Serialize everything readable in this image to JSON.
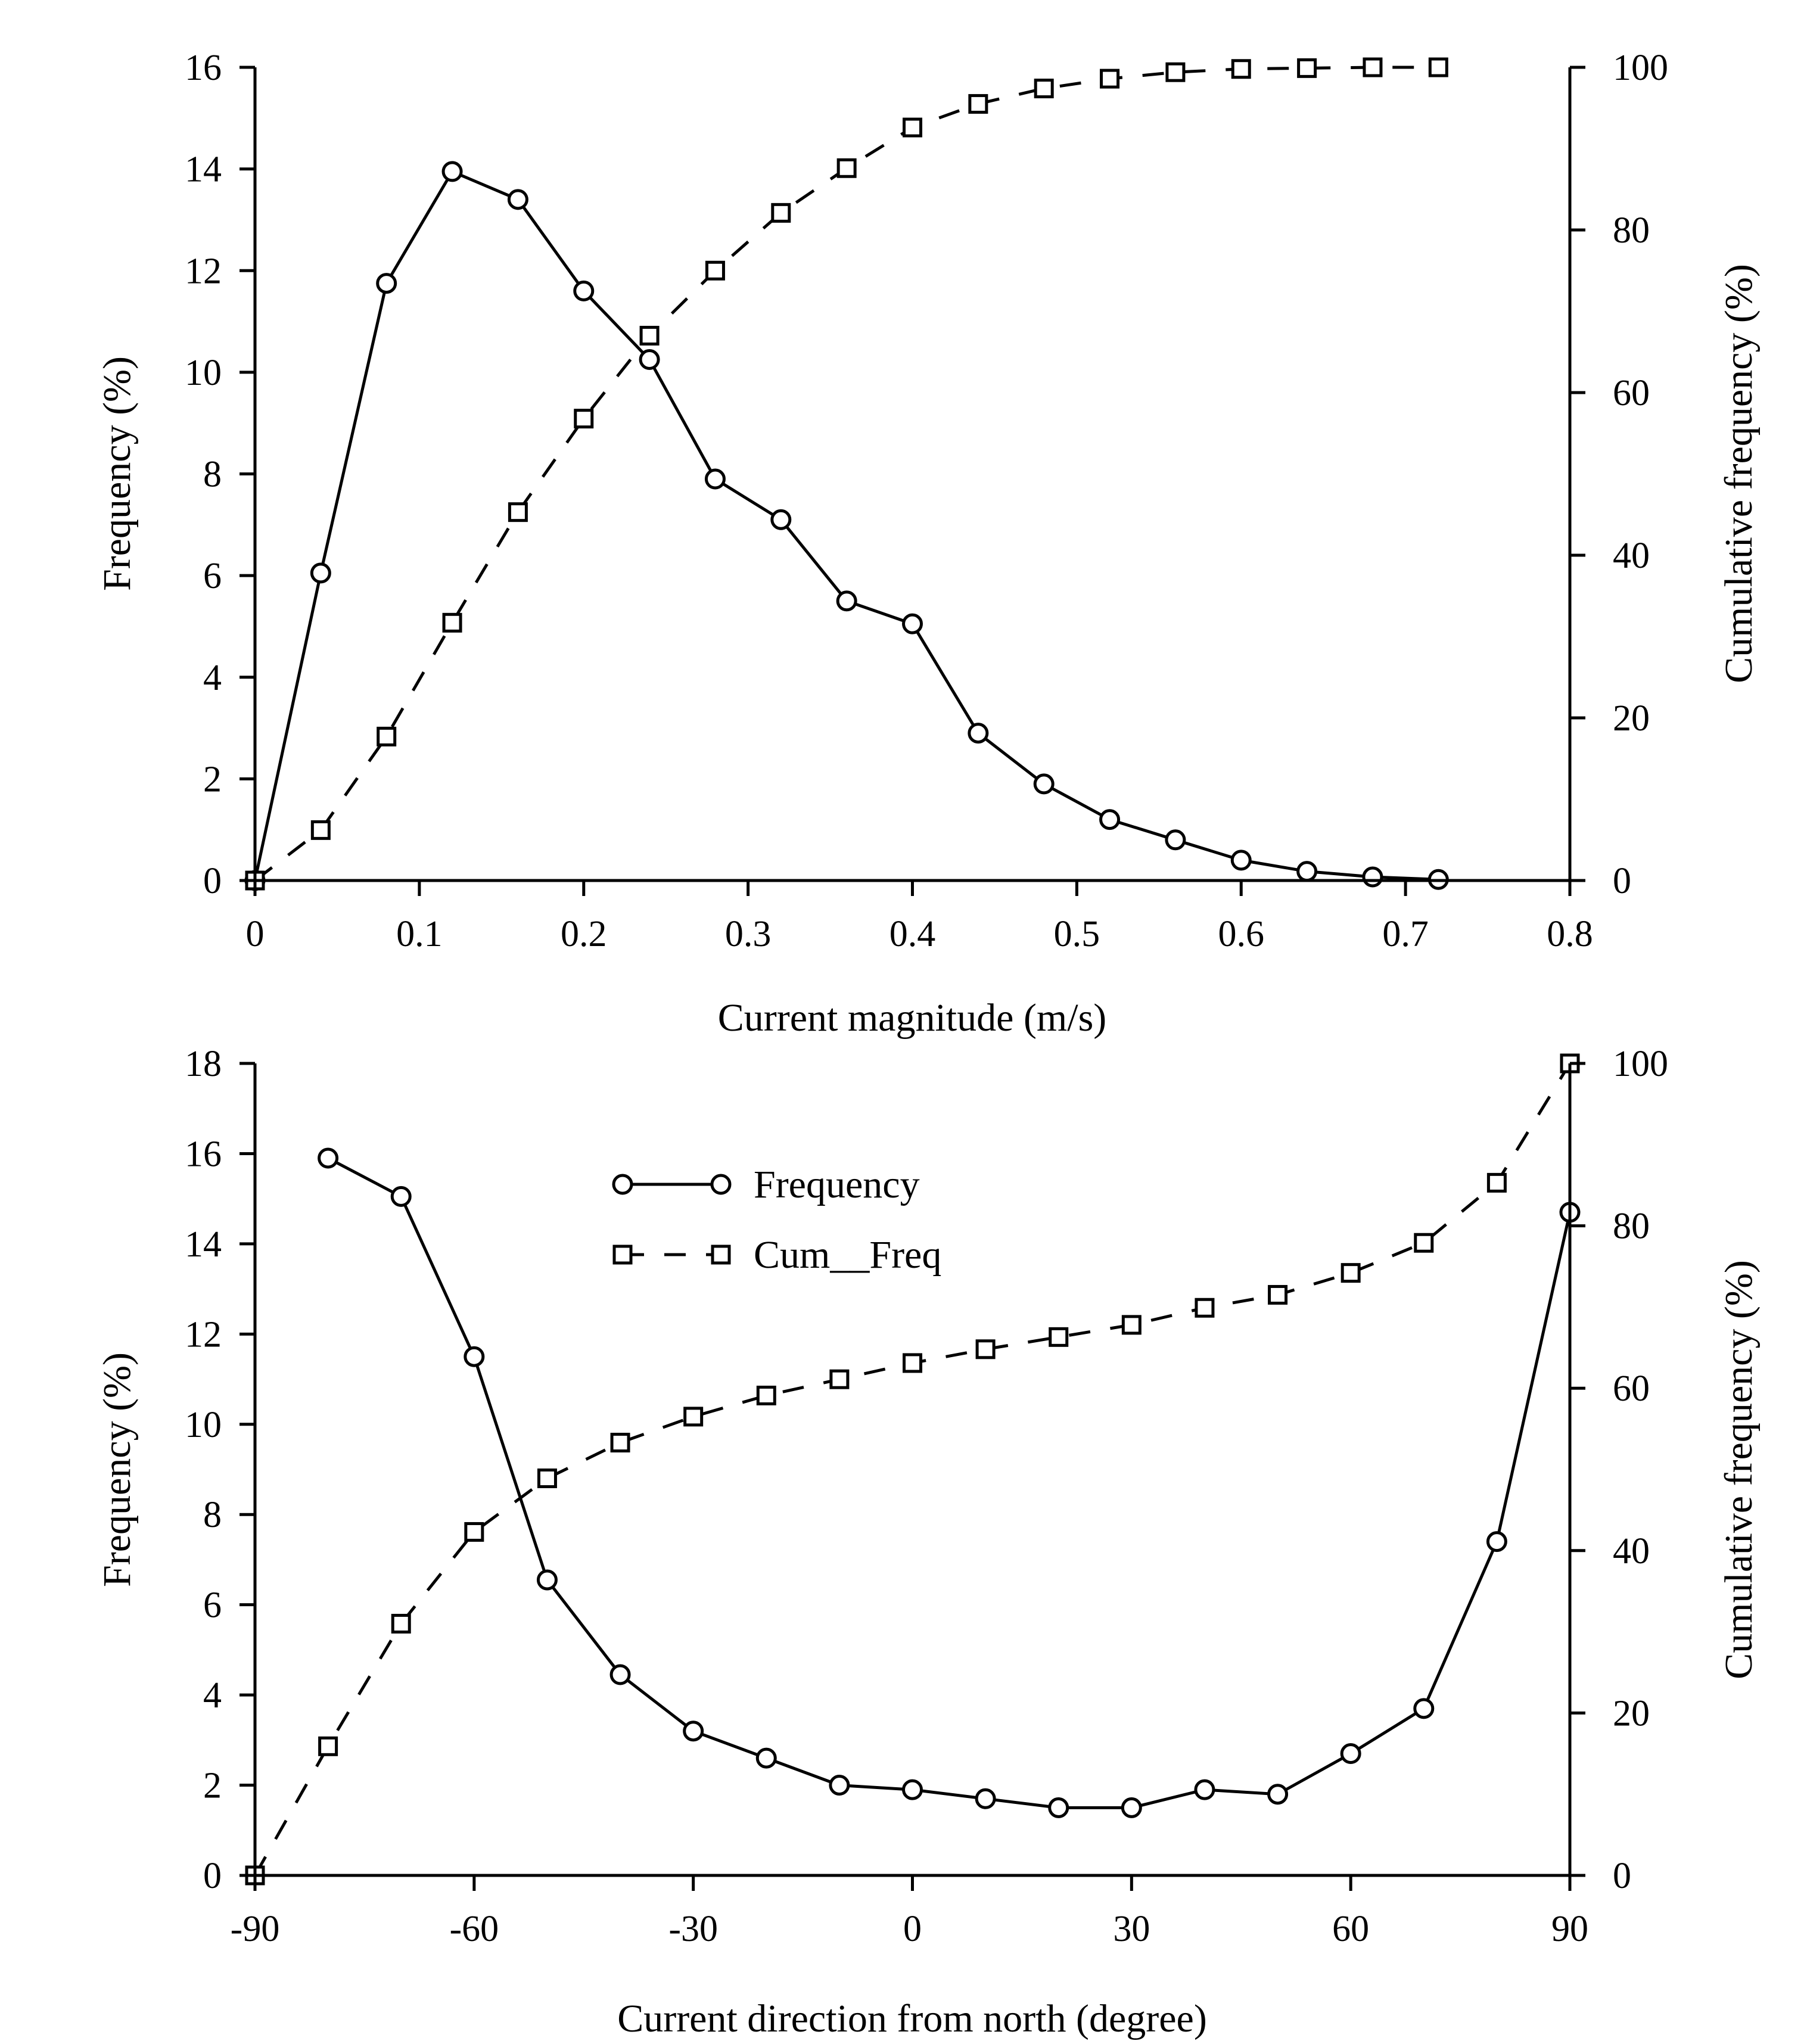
{
  "colors": {
    "line": "#000000",
    "background": "#ffffff"
  },
  "chart_data": [
    {
      "type": "line",
      "xlabel": "Current magnitude (m/s)",
      "ylabel": "Frequency (%)",
      "y2label": "Cumulative frequency (%)",
      "xlim": [
        0,
        0.8
      ],
      "ylim": [
        0,
        16
      ],
      "y2lim": [
        0,
        100
      ],
      "xticks": [
        "0",
        "0.1",
        "0.2",
        "0.3",
        "0.4",
        "0.5",
        "0.6",
        "0.7",
        "0.8"
      ],
      "yticks": [
        "0",
        "2",
        "4",
        "6",
        "8",
        "10",
        "12",
        "14",
        "16"
      ],
      "y2ticks": [
        "0",
        "20",
        "40",
        "60",
        "80",
        "100"
      ],
      "x": [
        0,
        0.04,
        0.08,
        0.12,
        0.16,
        0.2,
        0.24,
        0.28,
        0.32,
        0.36,
        0.4,
        0.44,
        0.48,
        0.52,
        0.56,
        0.6,
        0.64,
        0.68,
        0.72
      ],
      "series": [
        {
          "name": "Frequency",
          "axis": "left",
          "marker": "circle",
          "line_style": "solid",
          "values": [
            0,
            6.05,
            11.75,
            13.95,
            13.4,
            11.6,
            10.25,
            7.9,
            7.1,
            5.5,
            5.05,
            2.9,
            1.9,
            1.2,
            0.8,
            0.4,
            0.18,
            0.07,
            0.02
          ]
        },
        {
          "name": "Cum__Freq",
          "axis": "right",
          "marker": "square",
          "line_style": "dashed",
          "values": [
            0,
            6.2,
            17.7,
            31.7,
            45.3,
            56.8,
            67.0,
            75.0,
            82.1,
            87.6,
            92.6,
            95.5,
            97.4,
            98.6,
            99.4,
            99.8,
            99.9,
            100.0,
            100.0
          ]
        }
      ]
    },
    {
      "type": "line",
      "xlabel": "Current direction from north (degree)",
      "ylabel": "Frequency (%)",
      "y2label": "Cumulative frequency (%)",
      "xlim": [
        -90,
        90
      ],
      "ylim": [
        0,
        18
      ],
      "y2lim": [
        0,
        100
      ],
      "xticks": [
        "-90",
        "-60",
        "-30",
        "0",
        "30",
        "60",
        "90"
      ],
      "yticks": [
        "0",
        "2",
        "4",
        "6",
        "8",
        "10",
        "12",
        "14",
        "16",
        "18"
      ],
      "y2ticks": [
        "0",
        "20",
        "40",
        "60",
        "80",
        "100"
      ],
      "legend": {
        "position": "top-center",
        "entries": [
          "Frequency",
          "Cum__Freq"
        ]
      },
      "series": [
        {
          "name": "Frequency",
          "axis": "left",
          "marker": "circle",
          "line_style": "solid",
          "x": [
            -80,
            -70,
            -60,
            -50,
            -40,
            -30,
            -20,
            -10,
            0,
            10,
            20,
            30,
            40,
            50,
            60,
            70,
            80,
            90
          ],
          "values": [
            15.9,
            15.05,
            11.5,
            6.55,
            4.45,
            3.2,
            2.6,
            2.0,
            1.9,
            1.7,
            1.5,
            1.5,
            1.9,
            1.8,
            2.7,
            3.7,
            7.4,
            14.7
          ]
        },
        {
          "name": "Cum__Freq",
          "axis": "right",
          "marker": "square",
          "line_style": "dashed",
          "x": [
            -90,
            -80,
            -70,
            -60,
            -50,
            -40,
            -30,
            -20,
            -10,
            0,
            10,
            20,
            30,
            40,
            50,
            60,
            70,
            80,
            90
          ],
          "values": [
            0,
            15.9,
            31.0,
            42.3,
            48.9,
            53.3,
            56.5,
            59.1,
            61.1,
            63.1,
            64.8,
            66.3,
            67.8,
            69.9,
            71.5,
            74.2,
            77.9,
            85.3,
            100.0
          ]
        }
      ]
    }
  ]
}
